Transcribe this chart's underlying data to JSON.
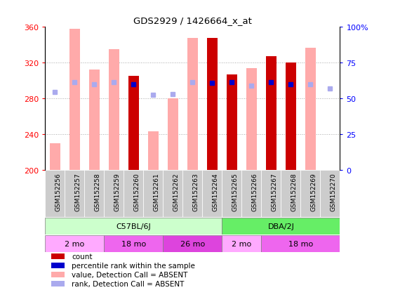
{
  "title": "GDS2929 / 1426664_x_at",
  "samples": [
    "GSM152256",
    "GSM152257",
    "GSM152258",
    "GSM152259",
    "GSM152260",
    "GSM152261",
    "GSM152262",
    "GSM152263",
    "GSM152264",
    "GSM152265",
    "GSM152266",
    "GSM152267",
    "GSM152268",
    "GSM152269",
    "GSM152270"
  ],
  "count_values": [
    null,
    null,
    null,
    null,
    305,
    null,
    null,
    null,
    348,
    307,
    null,
    327,
    320,
    null,
    null
  ],
  "absent_value_values": [
    230,
    358,
    312,
    335,
    null,
    243,
    280,
    348,
    null,
    null,
    314,
    null,
    null,
    337,
    null
  ],
  "percentile_present": [
    null,
    null,
    null,
    null,
    296,
    null,
    null,
    null,
    297,
    298,
    null,
    298,
    296,
    null,
    null
  ],
  "percentile_absent": [
    287,
    298,
    296,
    298,
    null,
    284,
    285,
    298,
    null,
    null,
    294,
    null,
    null,
    296,
    291
  ],
  "ylim": [
    200,
    360
  ],
  "yticks": [
    200,
    240,
    280,
    320,
    360
  ],
  "right_yticks_vals": [
    0,
    25,
    50,
    75,
    100
  ],
  "right_yticks_labels": [
    "0",
    "25",
    "50",
    "75",
    "100%"
  ],
  "strain_groups": [
    {
      "label": "C57BL/6J",
      "start": 0,
      "end": 9,
      "color": "#ccffcc"
    },
    {
      "label": "DBA/2J",
      "start": 9,
      "end": 15,
      "color": "#66ee66"
    }
  ],
  "age_groups": [
    {
      "label": "2 mo",
      "start": 0,
      "end": 3,
      "color": "#ffaaff"
    },
    {
      "label": "18 mo",
      "start": 3,
      "end": 6,
      "color": "#ee66ee"
    },
    {
      "label": "26 mo",
      "start": 6,
      "end": 9,
      "color": "#dd44dd"
    },
    {
      "label": "2 mo",
      "start": 9,
      "end": 11,
      "color": "#ffaaff"
    },
    {
      "label": "18 mo",
      "start": 11,
      "end": 15,
      "color": "#ee66ee"
    }
  ],
  "colors": {
    "count_bar": "#cc0000",
    "absent_bar": "#ffaaaa",
    "percentile_present": "#0000cc",
    "percentile_absent": "#aaaaee",
    "grid": "#aaaaaa",
    "background": "#ffffff",
    "plot_bg": "#ffffff",
    "xticklabel_bg": "#cccccc"
  },
  "legend": [
    {
      "label": "count",
      "color": "#cc0000"
    },
    {
      "label": "percentile rank within the sample",
      "color": "#0000cc"
    },
    {
      "label": "value, Detection Call = ABSENT",
      "color": "#ffaaaa"
    },
    {
      "label": "rank, Detection Call = ABSENT",
      "color": "#aaaaee"
    }
  ]
}
